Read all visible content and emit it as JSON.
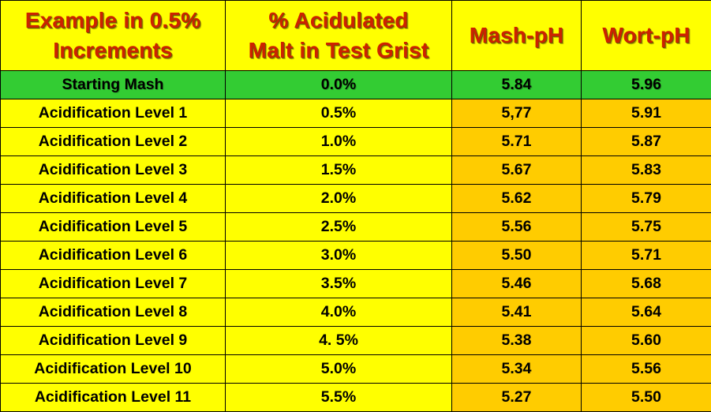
{
  "colors": {
    "header_bg": "#ffff00",
    "header_text": "#cc2200",
    "row_bg": "#ffff00",
    "starting_row_bg": "#33cc33",
    "ph_cell_bg": "#ffcc00",
    "grid_line": "#000000"
  },
  "header": {
    "col1_line1": "Example in 0.5%",
    "col1_line2": "Increments",
    "col2_line1": "% Acidulated",
    "col2_line2": "Malt in Test Grist",
    "col3": "Mash-pH",
    "col4": "Wort-pH"
  },
  "chart_data": {
    "type": "table",
    "columns": [
      "Example in 0.5% Increments",
      "% Acidulated Malt in Test Grist",
      "Mash-pH",
      "Wort-pH"
    ],
    "rows": [
      {
        "label": "Starting Mash",
        "acid_malt": "0.0%",
        "mash_ph": "5.84",
        "wort_ph": "5.96",
        "highlight": "start"
      },
      {
        "label": "Acidification Level 1",
        "acid_malt": "0.5%",
        "mash_ph": "5,77",
        "wort_ph": "5.91"
      },
      {
        "label": "Acidification Level 2",
        "acid_malt": "1.0%",
        "mash_ph": "5.71",
        "wort_ph": "5.87"
      },
      {
        "label": "Acidification Level 3",
        "acid_malt": "1.5%",
        "mash_ph": "5.67",
        "wort_ph": "5.83"
      },
      {
        "label": "Acidification Level 4",
        "acid_malt": "2.0%",
        "mash_ph": "5.62",
        "wort_ph": "5.79"
      },
      {
        "label": "Acidification Level 5",
        "acid_malt": "2.5%",
        "mash_ph": "5.56",
        "wort_ph": "5.75"
      },
      {
        "label": "Acidification Level 6",
        "acid_malt": "3.0%",
        "mash_ph": "5.50",
        "wort_ph": "5.71"
      },
      {
        "label": "Acidification Level 7",
        "acid_malt": "3.5%",
        "mash_ph": "5.46",
        "wort_ph": "5.68"
      },
      {
        "label": "Acidification Level 8",
        "acid_malt": "4.0%",
        "mash_ph": "5.41",
        "wort_ph": "5.64"
      },
      {
        "label": "Acidification Level 9",
        "acid_malt": "4. 5%",
        "mash_ph": "5.38",
        "wort_ph": "5.60"
      },
      {
        "label": "Acidification Level 10",
        "acid_malt": "5.0%",
        "mash_ph": "5.34",
        "wort_ph": "5.56"
      },
      {
        "label": "Acidification Level 11",
        "acid_malt": "5.5%",
        "mash_ph": "5.27",
        "wort_ph": "5.50"
      }
    ]
  }
}
